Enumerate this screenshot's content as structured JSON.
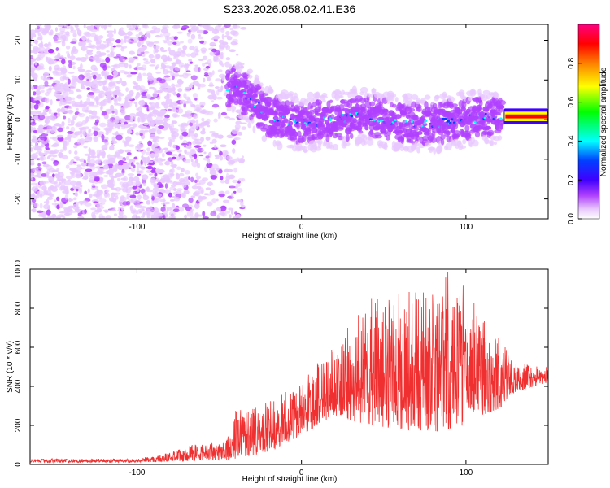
{
  "title": "S233.2026.058.02.41.E36",
  "chart_data": [
    {
      "type": "heatmap",
      "xlabel": "Height of straight line (km)",
      "ylabel": "Frequency (Hz)",
      "xlim": [
        -165,
        150
      ],
      "ylim": [
        -25,
        24
      ],
      "x_ticks": [
        -100,
        0,
        100
      ],
      "y_ticks": [
        -20,
        -10,
        0,
        10,
        20
      ],
      "colorbar": {
        "label": "Normalized spectral amplitude",
        "range": [
          0.0,
          1.0
        ],
        "ticks": [
          "0.0",
          "0.2",
          "0.4",
          "0.6",
          "0.8"
        ],
        "tick_values": [
          0.0,
          0.2,
          0.4,
          0.6,
          0.8
        ],
        "colors": [
          "#ffffff",
          "#c060ff",
          "#6000ff",
          "#0000ff",
          "#00ffff",
          "#00ff00",
          "#ffff00",
          "#ff8000",
          "#ff0000",
          "#ff0080"
        ]
      },
      "ridge_center_hz": [
        {
          "x": -40,
          "y": 8
        },
        {
          "x": -30,
          "y": 5
        },
        {
          "x": -20,
          "y": 1
        },
        {
          "x": 0,
          "y": -1
        },
        {
          "x": 20,
          "y": 0
        },
        {
          "x": 40,
          "y": 1
        },
        {
          "x": 60,
          "y": -1
        },
        {
          "x": 80,
          "y": -1
        },
        {
          "x": 100,
          "y": 0
        },
        {
          "x": 120,
          "y": 1
        },
        {
          "x": 150,
          "y": 1
        }
      ],
      "strong_band": {
        "x_start": 123,
        "x_end": 150,
        "y": 0.8
      }
    },
    {
      "type": "line",
      "xlabel": "Height of straight line (km)",
      "ylabel": "SNR (10 * v/v)",
      "xlim": [
        -165,
        150
      ],
      "ylim": [
        0,
        1000
      ],
      "x_ticks": [
        -100,
        0,
        100
      ],
      "y_ticks": [
        0,
        200,
        400,
        600,
        800,
        1000
      ],
      "series": [
        {
          "name": "SNR",
          "color": "#f03030",
          "envelope": [
            {
              "x": -165,
              "lo": 10,
              "hi": 30
            },
            {
              "x": -100,
              "lo": 10,
              "hi": 30
            },
            {
              "x": -80,
              "lo": 15,
              "hi": 60
            },
            {
              "x": -60,
              "lo": 20,
              "hi": 120
            },
            {
              "x": -45,
              "lo": 20,
              "hi": 140
            },
            {
              "x": -40,
              "lo": 30,
              "hi": 280
            },
            {
              "x": -20,
              "lo": 60,
              "hi": 330
            },
            {
              "x": 0,
              "lo": 150,
              "hi": 450
            },
            {
              "x": 20,
              "lo": 250,
              "hi": 600
            },
            {
              "x": 40,
              "lo": 200,
              "hi": 850
            },
            {
              "x": 60,
              "lo": 180,
              "hi": 880
            },
            {
              "x": 80,
              "lo": 150,
              "hi": 900
            },
            {
              "x": 90,
              "lo": 180,
              "hi": 1000
            },
            {
              "x": 100,
              "lo": 200,
              "hi": 900
            },
            {
              "x": 110,
              "lo": 250,
              "hi": 750
            },
            {
              "x": 120,
              "lo": 280,
              "hi": 650
            },
            {
              "x": 130,
              "lo": 370,
              "hi": 540
            },
            {
              "x": 150,
              "lo": 420,
              "hi": 500
            }
          ]
        }
      ]
    }
  ]
}
